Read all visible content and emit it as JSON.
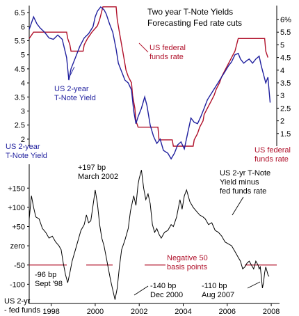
{
  "chart_data": [
    {
      "type": "line",
      "title": "Two year T-Note Yields",
      "subtitle": "Forecasting Fed rate cuts",
      "left_axis": {
        "label": "US 2-year T-Note Yield",
        "ticks": [
          "2",
          "2.5",
          "3",
          "3.5",
          "4",
          "4.5",
          "5",
          "5.5",
          "6",
          "6.5"
        ],
        "range": [
          1.75,
          6.75
        ]
      },
      "right_axis": {
        "label": "US federal funds rate",
        "ticks": [
          "1.5",
          "2",
          "2.5",
          "3",
          "3.5",
          "4",
          "4.5",
          "5",
          "5.5",
          "6%"
        ],
        "range": [
          1.0,
          6.55
        ]
      },
      "x_range": [
        1997.0,
        2008.25
      ],
      "series": [
        {
          "name": "US 2-year T-Note Yield",
          "axis": "left",
          "color": "#1f1f9e",
          "points": [
            [
              1997.0,
              5.9
            ],
            [
              1997.2,
              6.35
            ],
            [
              1997.35,
              6.1
            ],
            [
              1997.5,
              5.95
            ],
            [
              1997.7,
              5.8
            ],
            [
              1997.9,
              5.6
            ],
            [
              1998.1,
              5.55
            ],
            [
              1998.3,
              5.7
            ],
            [
              1998.5,
              5.55
            ],
            [
              1998.7,
              4.9
            ],
            [
              1998.8,
              4.1
            ],
            [
              1998.9,
              4.5
            ],
            [
              1999.1,
              4.9
            ],
            [
              1999.3,
              5.3
            ],
            [
              1999.5,
              5.6
            ],
            [
              1999.7,
              5.75
            ],
            [
              1999.9,
              6.0
            ],
            [
              2000.0,
              6.35
            ],
            [
              2000.1,
              6.55
            ],
            [
              2000.25,
              6.7
            ],
            [
              2000.4,
              6.6
            ],
            [
              2000.5,
              6.45
            ],
            [
              2000.65,
              6.1
            ],
            [
              2000.8,
              5.8
            ],
            [
              2000.95,
              5.2
            ],
            [
              2001.05,
              4.7
            ],
            [
              2001.2,
              4.4
            ],
            [
              2001.35,
              4.1
            ],
            [
              2001.5,
              4.0
            ],
            [
              2001.65,
              3.75
            ],
            [
              2001.75,
              3.0
            ],
            [
              2001.85,
              2.55
            ],
            [
              2001.95,
              2.8
            ],
            [
              2002.1,
              3.1
            ],
            [
              2002.25,
              3.5
            ],
            [
              2002.35,
              3.2
            ],
            [
              2002.5,
              2.5
            ],
            [
              2002.65,
              2.1
            ],
            [
              2002.8,
              1.85
            ],
            [
              2002.95,
              2.0
            ],
            [
              2003.1,
              1.6
            ],
            [
              2003.3,
              1.5
            ],
            [
              2003.45,
              1.3
            ],
            [
              2003.6,
              1.5
            ],
            [
              2003.75,
              1.8
            ],
            [
              2003.9,
              1.9
            ],
            [
              2004.05,
              1.65
            ],
            [
              2004.2,
              2.2
            ],
            [
              2004.35,
              2.75
            ],
            [
              2004.5,
              2.6
            ],
            [
              2004.65,
              2.55
            ],
            [
              2004.8,
              2.8
            ],
            [
              2004.95,
              3.1
            ],
            [
              2005.1,
              3.4
            ],
            [
              2005.3,
              3.65
            ],
            [
              2005.5,
              3.9
            ],
            [
              2005.7,
              4.15
            ],
            [
              2005.9,
              4.4
            ],
            [
              2006.05,
              4.6
            ],
            [
              2006.2,
              4.75
            ],
            [
              2006.35,
              5.0
            ],
            [
              2006.5,
              5.05
            ],
            [
              2006.6,
              4.85
            ],
            [
              2006.75,
              4.7
            ],
            [
              2006.9,
              4.8
            ],
            [
              2007.0,
              4.85
            ],
            [
              2007.15,
              4.7
            ],
            [
              2007.3,
              4.85
            ],
            [
              2007.45,
              4.95
            ],
            [
              2007.55,
              4.6
            ],
            [
              2007.65,
              4.3
            ],
            [
              2007.75,
              4.0
            ],
            [
              2007.85,
              4.2
            ],
            [
              2007.95,
              3.3
            ]
          ]
        },
        {
          "name": "US federal funds rate",
          "axis": "right",
          "color": "#b0102a",
          "points": [
            [
              1997.0,
              5.25
            ],
            [
              1997.2,
              5.5
            ],
            [
              1998.7,
              5.5
            ],
            [
              1998.75,
              5.25
            ],
            [
              1998.85,
              5.0
            ],
            [
              1998.9,
              4.75
            ],
            [
              1999.45,
              4.75
            ],
            [
              1999.5,
              5.0
            ],
            [
              1999.65,
              5.25
            ],
            [
              1999.85,
              5.5
            ],
            [
              2000.1,
              5.75
            ],
            [
              2000.2,
              6.0
            ],
            [
              2000.35,
              6.5
            ],
            [
              2000.95,
              6.5
            ],
            [
              2001.0,
              6.0
            ],
            [
              2001.1,
              5.5
            ],
            [
              2001.2,
              5.0
            ],
            [
              2001.3,
              4.5
            ],
            [
              2001.4,
              4.0
            ],
            [
              2001.5,
              3.75
            ],
            [
              2001.65,
              3.5
            ],
            [
              2001.7,
              3.0
            ],
            [
              2001.8,
              2.5
            ],
            [
              2001.85,
              2.0
            ],
            [
              2001.95,
              1.75
            ],
            [
              2002.85,
              1.75
            ],
            [
              2002.9,
              1.25
            ],
            [
              2003.5,
              1.25
            ],
            [
              2003.55,
              1.0
            ],
            [
              2004.45,
              1.0
            ],
            [
              2004.5,
              1.25
            ],
            [
              2004.65,
              1.5
            ],
            [
              2004.75,
              1.75
            ],
            [
              2004.9,
              2.0
            ],
            [
              2004.95,
              2.25
            ],
            [
              2005.1,
              2.5
            ],
            [
              2005.25,
              2.75
            ],
            [
              2005.4,
              3.0
            ],
            [
              2005.5,
              3.25
            ],
            [
              2005.65,
              3.5
            ],
            [
              2005.75,
              3.75
            ],
            [
              2005.9,
              4.0
            ],
            [
              2006.05,
              4.25
            ],
            [
              2006.2,
              4.5
            ],
            [
              2006.35,
              4.75
            ],
            [
              2006.5,
              5.25
            ],
            [
              2007.7,
              5.25
            ],
            [
              2007.75,
              4.75
            ],
            [
              2007.85,
              4.5
            ]
          ]
        }
      ],
      "labels": {
        "two_year": [
          "US 2-year",
          "T-Note Yield"
        ],
        "fed_funds": [
          "US federal",
          "funds rate"
        ],
        "left_corner": [
          "US 2-year",
          "T-Note Yield"
        ],
        "right_corner": [
          "US federal",
          "funds rate"
        ]
      },
      "colors": {
        "two_year": "#1f1f9e",
        "fed_funds": "#b0102a"
      }
    },
    {
      "type": "line",
      "series_name": "US 2-yr T-Note Yield minus fed funds rate",
      "y_ticks": [
        {
          "label": "+150",
          "value": 150
        },
        {
          "label": "+100",
          "value": 100
        },
        {
          "label": "+50",
          "value": 50
        },
        {
          "label": "zero",
          "value": 0
        },
        {
          "label": "-50",
          "value": -50
        },
        {
          "label": "-100",
          "value": -100
        }
      ],
      "y_range": [
        -150,
        212
      ],
      "x_ticks": [
        "1998",
        "2000",
        "2002",
        "2004",
        "2006",
        "2008"
      ],
      "x_tick_values": [
        1998,
        2000,
        2002,
        2004,
        2006,
        2008
      ],
      "x_range": [
        1997.0,
        2008.25
      ],
      "threshold": {
        "value": -50,
        "label": [
          "Negative 50",
          "basis points"
        ],
        "color": "#b0102a"
      },
      "series_points": [
        [
          1997.0,
          70
        ],
        [
          1997.1,
          130
        ],
        [
          1997.2,
          100
        ],
        [
          1997.3,
          75
        ],
        [
          1997.45,
          70
        ],
        [
          1997.6,
          45
        ],
        [
          1997.75,
          35
        ],
        [
          1997.9,
          20
        ],
        [
          1998.05,
          25
        ],
        [
          1998.2,
          10
        ],
        [
          1998.35,
          0
        ],
        [
          1998.45,
          -10
        ],
        [
          1998.55,
          -45
        ],
        [
          1998.65,
          -75
        ],
        [
          1998.75,
          -96
        ],
        [
          1998.85,
          -70
        ],
        [
          1998.95,
          -40
        ],
        [
          1999.1,
          -10
        ],
        [
          1999.25,
          20
        ],
        [
          1999.35,
          40
        ],
        [
          1999.5,
          55
        ],
        [
          1999.6,
          80
        ],
        [
          1999.7,
          60
        ],
        [
          1999.8,
          65
        ],
        [
          1999.9,
          105
        ],
        [
          2000.0,
          145
        ],
        [
          2000.1,
          110
        ],
        [
          2000.2,
          55
        ],
        [
          2000.3,
          20
        ],
        [
          2000.4,
          0
        ],
        [
          2000.5,
          -30
        ],
        [
          2000.6,
          -60
        ],
        [
          2000.7,
          -90
        ],
        [
          2000.8,
          -115
        ],
        [
          2000.9,
          -140
        ],
        [
          2001.0,
          -110
        ],
        [
          2001.1,
          -55
        ],
        [
          2001.2,
          -10
        ],
        [
          2001.35,
          15
        ],
        [
          2001.5,
          45
        ],
        [
          2001.6,
          90
        ],
        [
          2001.75,
          130
        ],
        [
          2001.85,
          105
        ],
        [
          2001.95,
          160
        ],
        [
          2002.0,
          175
        ],
        [
          2002.1,
          197
        ],
        [
          2002.2,
          150
        ],
        [
          2002.3,
          120
        ],
        [
          2002.4,
          135
        ],
        [
          2002.5,
          110
        ],
        [
          2002.6,
          55
        ],
        [
          2002.7,
          35
        ],
        [
          2002.8,
          45
        ],
        [
          2002.9,
          30
        ],
        [
          2003.0,
          20
        ],
        [
          2003.15,
          35
        ],
        [
          2003.3,
          40
        ],
        [
          2003.45,
          55
        ],
        [
          2003.55,
          50
        ],
        [
          2003.7,
          75
        ],
        [
          2003.85,
          120
        ],
        [
          2003.95,
          95
        ],
        [
          2004.05,
          130
        ],
        [
          2004.15,
          145
        ],
        [
          2004.3,
          115
        ],
        [
          2004.45,
          100
        ],
        [
          2004.6,
          90
        ],
        [
          2004.75,
          80
        ],
        [
          2004.9,
          75
        ],
        [
          2005.0,
          70
        ],
        [
          2005.15,
          55
        ],
        [
          2005.3,
          60
        ],
        [
          2005.45,
          40
        ],
        [
          2005.6,
          35
        ],
        [
          2005.75,
          25
        ],
        [
          2005.9,
          10
        ],
        [
          2006.05,
          5
        ],
        [
          2006.2,
          0
        ],
        [
          2006.35,
          -15
        ],
        [
          2006.5,
          -30
        ],
        [
          2006.6,
          -40
        ],
        [
          2006.7,
          -60
        ],
        [
          2006.8,
          -55
        ],
        [
          2006.9,
          -45
        ],
        [
          2007.0,
          -40
        ],
        [
          2007.1,
          -50
        ],
        [
          2007.2,
          -60
        ],
        [
          2007.3,
          -40
        ],
        [
          2007.4,
          -50
        ],
        [
          2007.45,
          -60
        ],
        [
          2007.5,
          -55
        ],
        [
          2007.55,
          -80
        ],
        [
          2007.6,
          -110
        ],
        [
          2007.65,
          -95
        ],
        [
          2007.7,
          -70
        ],
        [
          2007.75,
          -55
        ],
        [
          2007.8,
          -65
        ],
        [
          2007.85,
          -75
        ],
        [
          2007.9,
          -80
        ]
      ],
      "annotations": [
        {
          "lines": [
            "+197 bp",
            "March 2002"
          ]
        },
        {
          "lines": [
            "-96 bp",
            "Sept '98"
          ]
        },
        {
          "lines": [
            "-140 bp",
            "Dec 2000"
          ]
        },
        {
          "lines": [
            "-110 bp",
            "Aug 2007"
          ]
        },
        {
          "lines": [
            "US 2-yr T-Note",
            "Yield minus",
            "fed funds rate"
          ]
        },
        {
          "lines": [
            "US 2-yr",
            "- fed funds"
          ]
        }
      ]
    }
  ]
}
